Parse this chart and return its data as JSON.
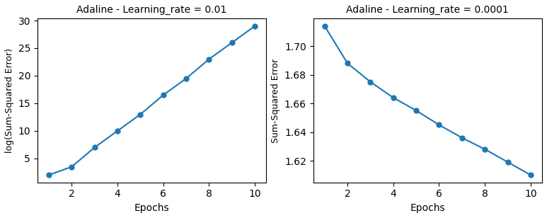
{
  "plot1": {
    "title": "Adaline - Learning_rate = 0.01",
    "xlabel": "Epochs",
    "ylabel": "log(Sum-Squared Error)",
    "x": [
      1,
      2,
      3,
      4,
      5,
      6,
      7,
      8,
      9,
      10
    ],
    "y": [
      2.0,
      3.5,
      7.0,
      10.0,
      13.0,
      16.5,
      19.5,
      23.0,
      26.0,
      29.0
    ],
    "line_color": "#1f77b4",
    "marker": "o",
    "markersize": 5,
    "xlim": [
      0.5,
      10.5
    ],
    "xticks": [
      2,
      4,
      6,
      8,
      10
    ]
  },
  "plot2": {
    "title": "Adaline - Learning_rate = 0.0001",
    "xlabel": "Epochs",
    "ylabel": "Sum-Squared Error",
    "x": [
      1,
      2,
      3,
      4,
      5,
      6,
      7,
      8,
      9,
      10
    ],
    "y": [
      1.714,
      1.688,
      1.675,
      1.664,
      1.655,
      1.645,
      1.636,
      1.628,
      1.619,
      1.61
    ],
    "line_color": "#1f77b4",
    "marker": "o",
    "markersize": 5,
    "xlim": [
      0.5,
      10.5
    ],
    "xticks": [
      2,
      4,
      6,
      8,
      10
    ]
  },
  "figsize": [
    7.73,
    3.08
  ],
  "dpi": 100
}
